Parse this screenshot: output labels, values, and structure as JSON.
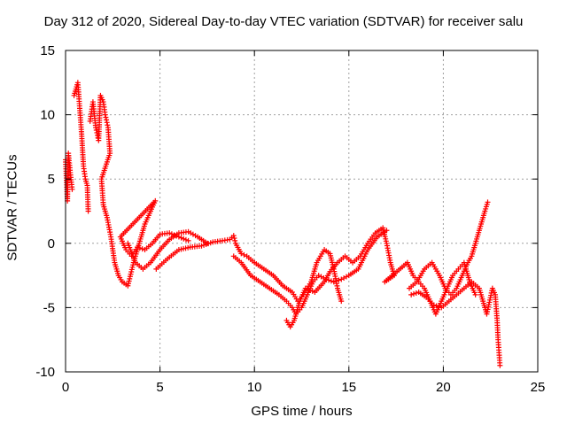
{
  "chart_data": {
    "type": "scatter",
    "title": "Day 312 of 2020, Sidereal Day-to-day VTEC variation (SDTVAR) for receiver salu",
    "xlabel": "GPS time / hours",
    "ylabel": "SDTVAR / TECUs",
    "xlim": [
      0,
      25
    ],
    "ylim": [
      -10,
      15
    ],
    "xticks": [
      0,
      5,
      10,
      15,
      20,
      25
    ],
    "yticks": [
      -10,
      -5,
      0,
      5,
      10,
      15
    ],
    "grid": true,
    "marker": "+",
    "color": "#ff0000",
    "series": [
      {
        "name": "SDTVAR",
        "points": [
          [
            0.0,
            6.5
          ],
          [
            0.1,
            3.3
          ],
          [
            0.15,
            7.0
          ],
          [
            0.25,
            5.5
          ],
          [
            0.35,
            4.2
          ],
          [
            0.45,
            11.5
          ],
          [
            0.55,
            12.0
          ],
          [
            0.65,
            12.5
          ],
          [
            0.75,
            10.5
          ],
          [
            0.85,
            8.5
          ],
          [
            0.95,
            6.0
          ],
          [
            1.05,
            5.0
          ],
          [
            1.15,
            4.5
          ],
          [
            1.2,
            2.5
          ],
          [
            1.3,
            9.5
          ],
          [
            1.45,
            11.0
          ],
          [
            1.6,
            9.0
          ],
          [
            1.75,
            8.0
          ],
          [
            1.85,
            11.5
          ],
          [
            2.0,
            11.0
          ],
          [
            2.1,
            10.0
          ],
          [
            2.25,
            9.0
          ],
          [
            2.35,
            7.0
          ],
          [
            1.9,
            5.0
          ],
          [
            2.0,
            3.0
          ],
          [
            2.2,
            2.0
          ],
          [
            2.4,
            0.5
          ],
          [
            2.6,
            -1.5
          ],
          [
            2.8,
            -2.5
          ],
          [
            3.0,
            -3.0
          ],
          [
            3.3,
            -3.3
          ],
          [
            3.6,
            -1.5
          ],
          [
            3.9,
            0.0
          ],
          [
            4.2,
            1.5
          ],
          [
            4.5,
            2.5
          ],
          [
            4.75,
            3.3
          ],
          [
            2.9,
            0.5
          ],
          [
            3.2,
            -0.5
          ],
          [
            3.5,
            -1.0
          ],
          [
            3.8,
            -0.3
          ],
          [
            4.2,
            -0.5
          ],
          [
            4.6,
            0.0
          ],
          [
            5.0,
            0.7
          ],
          [
            5.5,
            0.8
          ],
          [
            6.0,
            0.5
          ],
          [
            6.5,
            0.2
          ],
          [
            3.3,
            0.0
          ],
          [
            3.7,
            -1.5
          ],
          [
            4.1,
            -2.0
          ],
          [
            4.5,
            -1.5
          ],
          [
            5.0,
            -0.5
          ],
          [
            5.5,
            0.3
          ],
          [
            6.0,
            0.8
          ],
          [
            6.5,
            0.9
          ],
          [
            7.0,
            0.5
          ],
          [
            7.5,
            0.0
          ],
          [
            4.8,
            -2.0
          ],
          [
            5.4,
            -1.2
          ],
          [
            6.0,
            -0.5
          ],
          [
            6.6,
            -0.3
          ],
          [
            7.2,
            -0.2
          ],
          [
            7.8,
            0.1
          ],
          [
            8.3,
            0.2
          ],
          [
            8.7,
            0.3
          ],
          [
            8.9,
            0.6
          ],
          [
            9.0,
            0.0
          ],
          [
            9.3,
            -0.8
          ],
          [
            9.6,
            -1.0
          ],
          [
            10.0,
            -1.5
          ],
          [
            10.5,
            -2.0
          ],
          [
            11.0,
            -2.5
          ],
          [
            11.5,
            -3.3
          ],
          [
            12.0,
            -3.8
          ],
          [
            12.3,
            -4.5
          ],
          [
            12.6,
            -4.0
          ],
          [
            13.0,
            -3.0
          ],
          [
            13.3,
            -1.5
          ],
          [
            13.7,
            -0.5
          ],
          [
            14.0,
            -0.8
          ],
          [
            14.2,
            -2.0
          ],
          [
            14.4,
            -3.5
          ],
          [
            14.6,
            -4.5
          ],
          [
            8.9,
            -1.0
          ],
          [
            9.3,
            -1.5
          ],
          [
            9.8,
            -2.5
          ],
          [
            10.3,
            -3.0
          ],
          [
            10.8,
            -3.5
          ],
          [
            11.3,
            -4.0
          ],
          [
            11.7,
            -4.5
          ],
          [
            12.0,
            -5.0
          ],
          [
            12.2,
            -5.5
          ],
          [
            12.5,
            -5.0
          ],
          [
            12.8,
            -4.0
          ],
          [
            13.1,
            -3.0
          ],
          [
            13.4,
            -2.5
          ],
          [
            13.8,
            -2.8
          ],
          [
            14.2,
            -3.0
          ],
          [
            14.6,
            -2.8
          ],
          [
            15.0,
            -2.5
          ],
          [
            15.5,
            -2.0
          ],
          [
            16.0,
            -0.5
          ],
          [
            16.5,
            0.5
          ],
          [
            17.0,
            1.0
          ],
          [
            11.7,
            -6.0
          ],
          [
            11.9,
            -6.5
          ],
          [
            12.1,
            -6.0
          ],
          [
            12.4,
            -4.5
          ],
          [
            12.7,
            -3.5
          ],
          [
            13.2,
            -3.8
          ],
          [
            13.7,
            -3.0
          ],
          [
            14.0,
            -2.2
          ],
          [
            14.4,
            -1.5
          ],
          [
            14.8,
            -1.0
          ],
          [
            15.2,
            -1.5
          ],
          [
            15.6,
            -1.0
          ],
          [
            16.0,
            0.0
          ],
          [
            16.4,
            0.8
          ],
          [
            16.8,
            1.2
          ],
          [
            17.0,
            0.0
          ],
          [
            17.2,
            -1.5
          ],
          [
            17.4,
            -2.5
          ],
          [
            16.9,
            -3.0
          ],
          [
            18.1,
            -1.5
          ],
          [
            18.4,
            -2.5
          ],
          [
            18.7,
            -3.0
          ],
          [
            19.0,
            -3.5
          ],
          [
            19.3,
            -4.5
          ],
          [
            19.6,
            -5.5
          ],
          [
            19.9,
            -4.5
          ],
          [
            20.2,
            -3.5
          ],
          [
            20.5,
            -2.5
          ],
          [
            20.8,
            -2.0
          ],
          [
            21.1,
            -1.5
          ],
          [
            21.4,
            -3.0
          ],
          [
            21.7,
            -4.0
          ],
          [
            18.2,
            -3.5
          ],
          [
            18.6,
            -3.0
          ],
          [
            19.0,
            -2.0
          ],
          [
            19.4,
            -1.5
          ],
          [
            19.8,
            -2.5
          ],
          [
            20.1,
            -3.5
          ],
          [
            20.4,
            -4.0
          ],
          [
            20.7,
            -3.5
          ],
          [
            21.0,
            -2.5
          ],
          [
            21.3,
            -1.5
          ],
          [
            21.5,
            -1.0
          ],
          [
            21.8,
            0.5
          ],
          [
            22.0,
            1.5
          ],
          [
            22.2,
            2.5
          ],
          [
            22.35,
            3.2
          ],
          [
            18.3,
            -4.0
          ],
          [
            18.7,
            -3.8
          ],
          [
            19.1,
            -4.2
          ],
          [
            19.5,
            -4.8
          ],
          [
            19.9,
            -5.0
          ],
          [
            20.3,
            -4.5
          ],
          [
            20.7,
            -4.0
          ],
          [
            21.1,
            -3.5
          ],
          [
            21.5,
            -3.0
          ],
          [
            21.9,
            -3.5
          ],
          [
            22.1,
            -4.5
          ],
          [
            22.3,
            -5.5
          ],
          [
            22.6,
            -3.5
          ],
          [
            22.75,
            -4.0
          ],
          [
            22.85,
            -6.0
          ],
          [
            22.9,
            -7.5
          ],
          [
            22.95,
            -8.5
          ],
          [
            23.0,
            -9.5
          ]
        ]
      }
    ]
  }
}
